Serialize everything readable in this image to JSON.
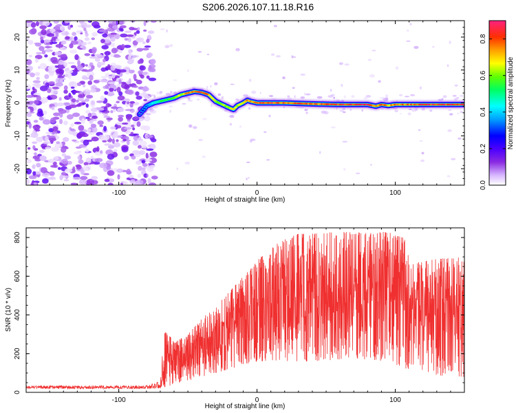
{
  "title": "S206.2026.107.11.18.R16",
  "chart_data": [
    {
      "type": "heatmap",
      "name": "spectrogram",
      "xlabel": "Height of straight line (km)",
      "ylabel": "Frequency (Hz)",
      "xlim": [
        -167,
        150
      ],
      "ylim": [
        -25,
        25
      ],
      "xticks": [
        -100,
        0,
        100
      ],
      "xtick_labels": [
        "-100",
        "0",
        "100"
      ],
      "yticks": [
        -20,
        -10,
        0,
        10,
        20
      ],
      "ytick_labels": [
        "-20",
        "-10",
        "0",
        "10",
        "20"
      ],
      "noise_region_x": [
        -167,
        -80
      ],
      "ridge": {
        "x": [
          -85,
          -80,
          -75,
          -70,
          -65,
          -60,
          -55,
          -50,
          -45,
          -40,
          -35,
          -30,
          -25,
          -20,
          -17,
          -14,
          -10,
          -7,
          -5,
          0,
          20,
          40,
          60,
          80,
          86,
          90,
          95,
          100,
          120,
          150
        ],
        "freq": [
          -3.5,
          -1,
          0,
          0.5,
          1,
          1.5,
          2.5,
          3,
          3.5,
          3.2,
          2.5,
          0.5,
          -0.5,
          -1.5,
          -2,
          -0.8,
          0,
          0.8,
          0.5,
          0,
          0,
          -0.3,
          -0.5,
          -0.5,
          -1,
          -0.5,
          -0.8,
          -0.5,
          -0.5,
          -0.5
        ],
        "amplitude": [
          0.2,
          0.35,
          0.45,
          0.55,
          0.6,
          0.65,
          0.7,
          0.8,
          0.85,
          0.85,
          0.8,
          0.7,
          0.65,
          0.7,
          0.75,
          0.7,
          0.75,
          0.8,
          0.8,
          0.9,
          0.85,
          0.85,
          0.88,
          0.9,
          0.8,
          0.85,
          0.8,
          0.8,
          0.88,
          0.9
        ]
      },
      "colorbar": {
        "label": "Normalized spectral amplitude",
        "range": [
          0,
          0.9
        ],
        "ticks": [
          0,
          0.2,
          0.4,
          0.6,
          0.8
        ],
        "tick_labels": [
          "0.0",
          "0.2",
          "0.4",
          "0.6",
          "0.8"
        ]
      }
    },
    {
      "type": "line",
      "name": "snr",
      "xlabel": "Height of straight line (km)",
      "ylabel": "SNR (10 * v/v)",
      "xlim": [
        -167,
        150
      ],
      "ylim": [
        0,
        850
      ],
      "xticks": [
        -100,
        0,
        100
      ],
      "xtick_labels": [
        "-100",
        "0",
        "100"
      ],
      "yticks": [
        0,
        200,
        400,
        600,
        800
      ],
      "ytick_labels": [
        "0",
        "200",
        "400",
        "600",
        "800"
      ],
      "color": "#f03030",
      "envelope": {
        "x": [
          -167,
          -80,
          -70,
          -67,
          -60,
          -50,
          -40,
          -30,
          -20,
          -10,
          0,
          10,
          20,
          30,
          40,
          60,
          80,
          95,
          100,
          108,
          110,
          120,
          130,
          150
        ],
        "upper": [
          35,
          35,
          60,
          330,
          260,
          300,
          380,
          450,
          520,
          600,
          680,
          750,
          790,
          820,
          820,
          830,
          825,
          830,
          810,
          800,
          660,
          680,
          690,
          700
        ],
        "lower": [
          18,
          18,
          20,
          25,
          40,
          60,
          80,
          100,
          120,
          140,
          160,
          160,
          160,
          160,
          160,
          170,
          170,
          160,
          140,
          120,
          120,
          110,
          90,
          70
        ]
      }
    }
  ]
}
